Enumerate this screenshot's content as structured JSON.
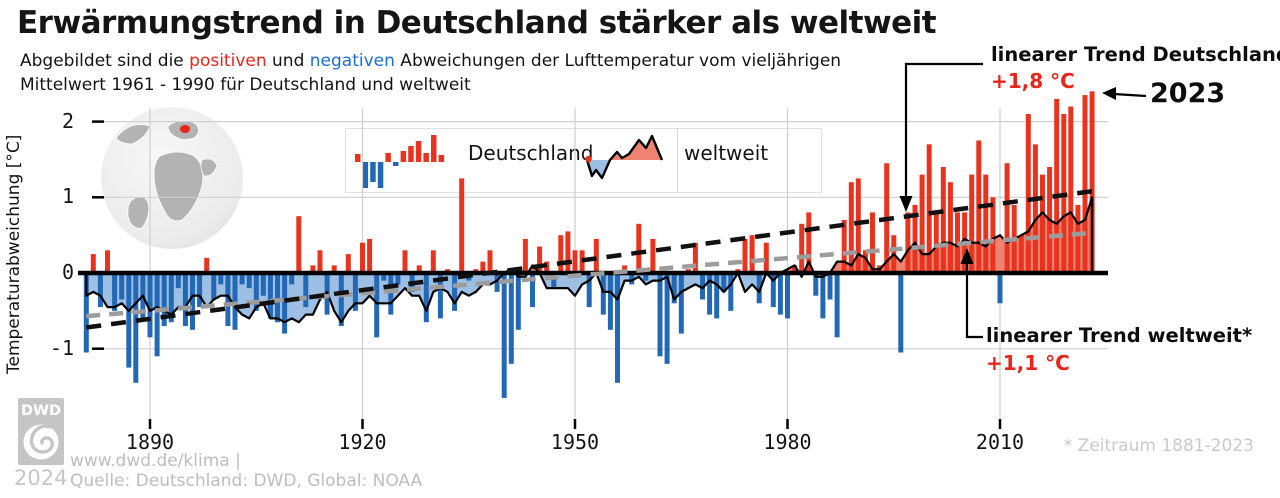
{
  "header": {
    "title": "Erwärmungstrend in Deutschland stärker als weltweit",
    "subtitle_part1": "Abgebildet sind die ",
    "subtitle_positive": "positiven",
    "subtitle_and": " und ",
    "subtitle_negative": "negativen",
    "subtitle_part2": " Abweichungen der Lufttemperatur vom vieljährigen",
    "subtitle_line2": "Mittelwert 1961 - 1990 für Deutschland und weltweit"
  },
  "legend": {
    "deutschland": "Deutschland",
    "weltweit": "weltweit"
  },
  "axes": {
    "y_label": "Temperaturabweichung [°C]"
  },
  "annotations": {
    "trend_de_label": "linearer Trend Deutschland*",
    "trend_de_value": "+1,8 °C",
    "year_2023": "2023",
    "trend_ww_label": "linearer Trend weltweit*",
    "trend_ww_value": "+1,1 °C",
    "footnote": "* Zeitraum 1881-2023"
  },
  "footer": {
    "url": "www.dwd.de/klima |",
    "source": "Quelle: Deutschland: DWD, Global: NOAA",
    "year": "2024",
    "logo_text": "DWD"
  },
  "colors": {
    "positive_bar": "#e8331f",
    "negative_bar": "#2268b5",
    "area_positive": "#ef8372",
    "area_negative": "#9dbfe4",
    "trend_germany": "#111111",
    "trend_global": "#9c9c9c",
    "grid": "#cfcfcf",
    "accent_red": "#e8251a",
    "link_blue": "#1a6fd4",
    "footer_gray": "#bdbdbd"
  },
  "chart_data": {
    "type": "bar+area",
    "title": "Erwärmungstrend in Deutschland stärker als weltweit",
    "subtitle": "Abweichungen der Lufttemperatur vom vieljährigen Mittelwert 1961 - 1990 für Deutschland und weltweit",
    "ylabel": "Temperaturabweichung [°C]",
    "ylim": [
      -1.9,
      2.6
    ],
    "y_ticks": [
      2,
      1,
      0,
      -1
    ],
    "x_ticks": [
      1890,
      1920,
      1950,
      1980,
      2010
    ],
    "x_start_year": 1881,
    "x_end_year": 2023,
    "grid": true,
    "legend_position": "top-center",
    "series": [
      {
        "name": "Deutschland",
        "type": "bar",
        "unit": "°C",
        "values": [
          -1.05,
          0.25,
          -0.45,
          0.3,
          -0.5,
          -0.35,
          -1.25,
          -1.45,
          -0.6,
          -0.85,
          -1.1,
          -0.7,
          -0.65,
          -0.2,
          -0.7,
          -0.75,
          -0.45,
          0.2,
          -0.35,
          -0.15,
          -0.7,
          -0.75,
          -0.15,
          -0.2,
          -0.5,
          -0.3,
          -0.6,
          -0.65,
          -0.8,
          -0.15,
          0.75,
          -0.45,
          0.1,
          0.3,
          -0.55,
          0.1,
          -0.7,
          0.25,
          -0.5,
          0.4,
          0.45,
          -0.85,
          -0.1,
          -0.55,
          -0.15,
          0.3,
          -0.25,
          0.1,
          -0.65,
          0.3,
          -0.6,
          0.05,
          -0.5,
          1.25,
          -0.1,
          0.05,
          0.15,
          0.3,
          -0.25,
          -1.65,
          -1.2,
          -0.75,
          0.45,
          -0.45,
          0.35,
          0.15,
          -0.2,
          0.5,
          0.55,
          0.3,
          0.3,
          -0.45,
          0.45,
          -0.55,
          -0.75,
          -1.45,
          0.1,
          -0.15,
          0.65,
          -0.1,
          0.45,
          -1.1,
          -1.2,
          -0.4,
          -0.8,
          0.05,
          0.4,
          -0.35,
          -0.55,
          -0.6,
          -0.25,
          -0.5,
          0.05,
          0.45,
          0.5,
          -0.4,
          0.4,
          -0.45,
          -0.55,
          -0.6,
          0.1,
          0.65,
          0.8,
          -0.3,
          -0.6,
          -0.35,
          -0.85,
          0.7,
          1.2,
          1.25,
          0.3,
          0.8,
          0.1,
          1.45,
          0.5,
          -1.05,
          0.8,
          0.9,
          1.3,
          1.7,
          0.8,
          1.4,
          1.2,
          0.8,
          0.8,
          1.3,
          1.75,
          1.3,
          1.0,
          -0.4,
          1.45,
          0.9,
          0.5,
          2.1,
          1.7,
          1.3,
          1.4,
          2.3,
          2.1,
          2.2,
          0.9,
          2.35,
          2.4
        ]
      },
      {
        "name": "weltweit",
        "type": "area",
        "unit": "°C",
        "values": [
          -0.3,
          -0.25,
          -0.3,
          -0.45,
          -0.45,
          -0.4,
          -0.5,
          -0.4,
          -0.3,
          -0.5,
          -0.45,
          -0.5,
          -0.55,
          -0.45,
          -0.45,
          -0.3,
          -0.3,
          -0.45,
          -0.35,
          -0.3,
          -0.3,
          -0.45,
          -0.55,
          -0.6,
          -0.45,
          -0.4,
          -0.6,
          -0.6,
          -0.65,
          -0.6,
          -0.65,
          -0.55,
          -0.55,
          -0.35,
          -0.25,
          -0.5,
          -0.65,
          -0.5,
          -0.4,
          -0.4,
          -0.3,
          -0.4,
          -0.4,
          -0.4,
          -0.3,
          -0.2,
          -0.3,
          -0.3,
          -0.5,
          -0.25,
          -0.2,
          -0.25,
          -0.4,
          -0.25,
          -0.3,
          -0.25,
          -0.15,
          -0.15,
          -0.1,
          0.0,
          0.05,
          -0.05,
          -0.05,
          0.1,
          0.0,
          -0.2,
          -0.2,
          -0.2,
          -0.2,
          -0.3,
          -0.15,
          -0.1,
          0.0,
          -0.25,
          -0.25,
          -0.35,
          -0.1,
          -0.1,
          -0.05,
          -0.15,
          -0.1,
          -0.1,
          -0.05,
          -0.35,
          -0.25,
          -0.2,
          -0.15,
          -0.2,
          -0.1,
          -0.15,
          -0.25,
          -0.15,
          0.0,
          -0.25,
          -0.15,
          -0.25,
          0.0,
          -0.1,
          0.0,
          0.05,
          0.1,
          -0.05,
          0.15,
          -0.05,
          -0.05,
          0.0,
          0.15,
          0.15,
          0.1,
          0.25,
          0.2,
          0.05,
          0.05,
          0.15,
          0.25,
          0.15,
          0.3,
          0.4,
          0.25,
          0.25,
          0.35,
          0.4,
          0.4,
          0.35,
          0.45,
          0.4,
          0.4,
          0.35,
          0.45,
          0.5,
          0.4,
          0.45,
          0.5,
          0.55,
          0.7,
          0.8,
          0.7,
          0.65,
          0.75,
          0.8,
          0.65,
          0.7,
          1.0
        ]
      }
    ],
    "trends": [
      {
        "name": "linearer Trend Deutschland",
        "total_change_label": "+1,8 °C",
        "start_value": -0.72,
        "end_value": 1.08
      },
      {
        "name": "linearer Trend weltweit",
        "total_change_label": "+1,1 °C",
        "start_value": -0.57,
        "end_value": 0.53
      }
    ],
    "annotations": [
      "2023",
      "* Zeitraum 1881-2023"
    ]
  }
}
